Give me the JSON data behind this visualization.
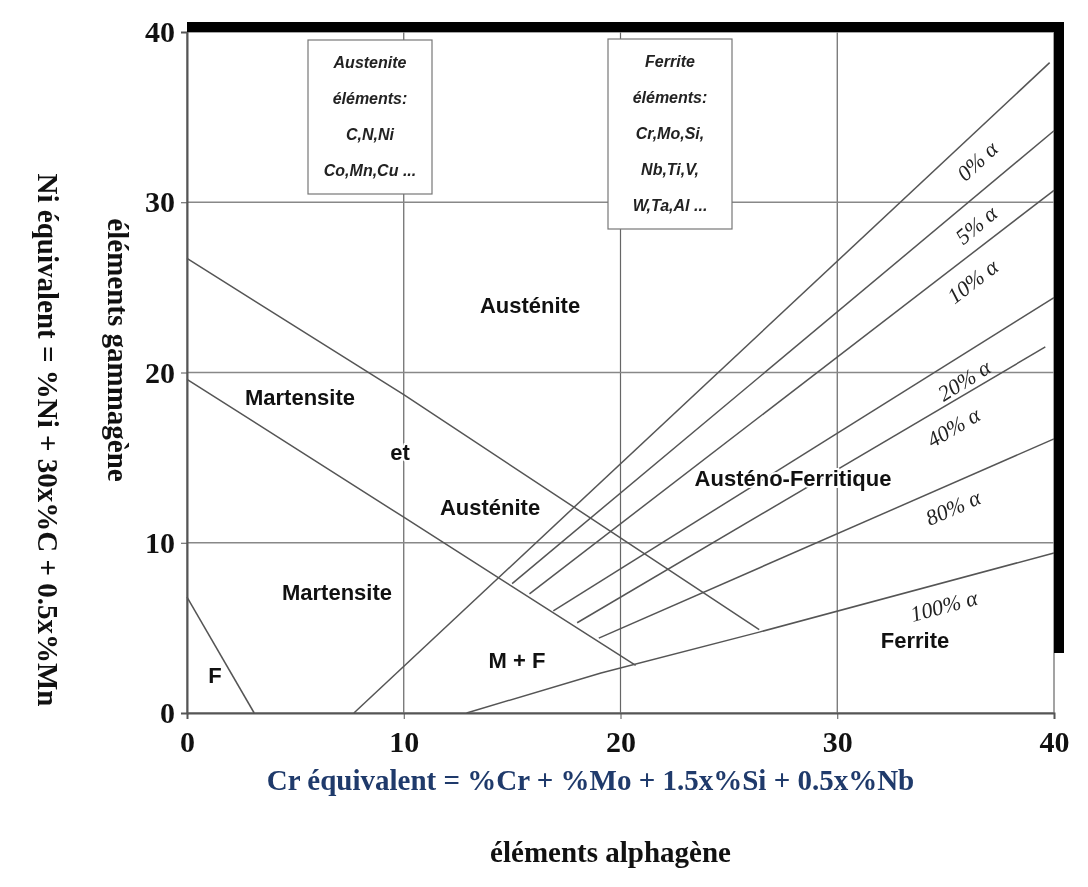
{
  "chart_data": {
    "type": "line",
    "xlabel": "Cr équivalent = %Cr + %Mo + 1.5x%Si + 0.5x%Nb\néléments alphagène",
    "ylabel": "Ni équivalent = %Ni + 30x%C + 0.5x%Mn\néléments gammagène",
    "xlim": [
      0,
      40
    ],
    "ylim": [
      0,
      40
    ],
    "xticks": [
      0,
      10,
      20,
      30,
      40
    ],
    "yticks": [
      0,
      10,
      20,
      30,
      40
    ],
    "grid": true,
    "series": [
      {
        "color": "#555555",
        "x": [
          0,
          10,
          26.4
        ],
        "values": [
          26.7,
          18.7,
          4.9
        ]
      },
      {
        "color": "#555555",
        "x": [
          0,
          10,
          20.7
        ],
        "values": [
          19.6,
          11.5,
          2.8
        ]
      },
      {
        "color": "#555555",
        "x": [
          0,
          3.1
        ],
        "values": [
          6.8,
          0
        ]
      },
      {
        "name": "0% α",
        "color": "#555555",
        "x": [
          7.7,
          39.8
        ],
        "values": [
          0,
          38.2
        ]
      },
      {
        "name": "5% α",
        "color": "#555555",
        "x": [
          15,
          40
        ],
        "values": [
          7.6,
          34.2
        ]
      },
      {
        "name": "10% α",
        "color": "#555555",
        "x": [
          15.8,
          40
        ],
        "values": [
          7.0,
          30.7
        ]
      },
      {
        "name": "20% α",
        "color": "#555555",
        "x": [
          16.9,
          40
        ],
        "values": [
          6.0,
          24.4
        ]
      },
      {
        "name": "40% α",
        "color": "#555555",
        "x": [
          18,
          39.6
        ],
        "values": [
          5.3,
          21.5
        ]
      },
      {
        "name": "80% α",
        "color": "#555555",
        "x": [
          19,
          40
        ],
        "values": [
          4.4,
          16.1
        ]
      },
      {
        "name": "100% α",
        "color": "#555555",
        "x": [
          12.9,
          19.1,
          26.4,
          40
        ],
        "values": [
          0,
          2.35,
          4.75,
          9.4
        ]
      }
    ],
    "annotations": [
      "Austenite\néléments:\nC,N,Ni\nCo,Mn,Cu ...",
      "Ferrite\néléments:\nCr,Mo,Si,\nNb,Ti,V,\nW,Ta,Al ...",
      "Austénite",
      "Martensite",
      "et",
      "Austénite",
      "Martensite",
      "M + F",
      "F",
      "Austéno-Ferritique",
      "Ferrite"
    ]
  }
}
